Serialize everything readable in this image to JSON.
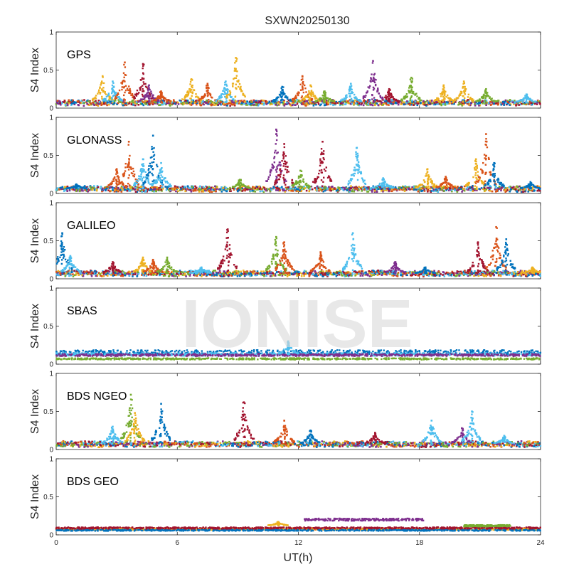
{
  "figure": {
    "title": "SXWN20250130",
    "watermark": "IONISE",
    "xlabel": "UT(h)",
    "ylabel": "S4 Index"
  },
  "colors": [
    "#0072BD",
    "#D95319",
    "#EDB120",
    "#7E2F8E",
    "#77AC30",
    "#4DBEEE",
    "#A2142F"
  ],
  "chart_data": [
    {
      "type": "scatter",
      "system": "GPS",
      "xlim": [
        0,
        24
      ],
      "ylim": [
        0,
        1
      ],
      "xticks": [
        0,
        6,
        12,
        18,
        24
      ],
      "yticks": [
        0,
        0.5,
        1
      ],
      "baseline": 0.07,
      "spikes": [
        {
          "x": 2.3,
          "peak": 0.42,
          "color": 2
        },
        {
          "x": 2.8,
          "peak": 0.35,
          "color": 5
        },
        {
          "x": 3.4,
          "peak": 0.6,
          "color": 1
        },
        {
          "x": 4.3,
          "peak": 0.58,
          "color": 6
        },
        {
          "x": 4.6,
          "peak": 0.3,
          "color": 3
        },
        {
          "x": 5.2,
          "peak": 0.22,
          "color": 1
        },
        {
          "x": 6.7,
          "peak": 0.38,
          "color": 2
        },
        {
          "x": 7.5,
          "peak": 0.32,
          "color": 1
        },
        {
          "x": 8.4,
          "peak": 0.35,
          "color": 5
        },
        {
          "x": 8.9,
          "peak": 0.66,
          "color": 2
        },
        {
          "x": 11.2,
          "peak": 0.28,
          "color": 0
        },
        {
          "x": 12.2,
          "peak": 0.42,
          "color": 1
        },
        {
          "x": 12.6,
          "peak": 0.3,
          "color": 2
        },
        {
          "x": 13.3,
          "peak": 0.22,
          "color": 4
        },
        {
          "x": 14.6,
          "peak": 0.32,
          "color": 5
        },
        {
          "x": 15.7,
          "peak": 0.62,
          "color": 3
        },
        {
          "x": 16.5,
          "peak": 0.25,
          "color": 6
        },
        {
          "x": 17.6,
          "peak": 0.4,
          "color": 4
        },
        {
          "x": 19.2,
          "peak": 0.3,
          "color": 2
        },
        {
          "x": 20.2,
          "peak": 0.35,
          "color": 2
        },
        {
          "x": 21.3,
          "peak": 0.25,
          "color": 4
        },
        {
          "x": 23.3,
          "peak": 0.18,
          "color": 5
        }
      ]
    },
    {
      "type": "scatter",
      "system": "GLONASS",
      "xlim": [
        0,
        24
      ],
      "ylim": [
        0,
        1
      ],
      "xticks": [
        0,
        6,
        12,
        18,
        24
      ],
      "yticks": [
        0,
        0.5,
        1
      ],
      "baseline": 0.06,
      "spikes": [
        {
          "x": 1.0,
          "peak": 0.12,
          "color": 0
        },
        {
          "x": 3.0,
          "peak": 0.32,
          "color": 1
        },
        {
          "x": 3.6,
          "peak": 0.68,
          "color": 1
        },
        {
          "x": 4.3,
          "peak": 0.45,
          "color": 5
        },
        {
          "x": 4.8,
          "peak": 0.76,
          "color": 0
        },
        {
          "x": 5.2,
          "peak": 0.4,
          "color": 5
        },
        {
          "x": 9.1,
          "peak": 0.18,
          "color": 4
        },
        {
          "x": 10.9,
          "peak": 0.84,
          "color": 3
        },
        {
          "x": 11.3,
          "peak": 0.65,
          "color": 6
        },
        {
          "x": 12.1,
          "peak": 0.3,
          "color": 4
        },
        {
          "x": 13.2,
          "peak": 0.68,
          "color": 6
        },
        {
          "x": 14.9,
          "peak": 0.6,
          "color": 5
        },
        {
          "x": 16.2,
          "peak": 0.2,
          "color": 5
        },
        {
          "x": 18.4,
          "peak": 0.32,
          "color": 2
        },
        {
          "x": 19.3,
          "peak": 0.22,
          "color": 1
        },
        {
          "x": 20.8,
          "peak": 0.45,
          "color": 2
        },
        {
          "x": 21.3,
          "peak": 0.78,
          "color": 1
        },
        {
          "x": 21.7,
          "peak": 0.4,
          "color": 0
        },
        {
          "x": 23.5,
          "peak": 0.15,
          "color": 0
        }
      ]
    },
    {
      "type": "scatter",
      "system": "GALILEO",
      "xlim": [
        0,
        24
      ],
      "ylim": [
        0,
        1
      ],
      "xticks": [
        0,
        6,
        12,
        18,
        24
      ],
      "yticks": [
        0,
        0.5,
        1
      ],
      "baseline": 0.07,
      "spikes": [
        {
          "x": 0.3,
          "peak": 0.6,
          "color": 0
        },
        {
          "x": 0.7,
          "peak": 0.3,
          "color": 5
        },
        {
          "x": 2.8,
          "peak": 0.22,
          "color": 6
        },
        {
          "x": 4.3,
          "peak": 0.28,
          "color": 2
        },
        {
          "x": 4.8,
          "peak": 0.25,
          "color": 1
        },
        {
          "x": 5.5,
          "peak": 0.28,
          "color": 4
        },
        {
          "x": 7.2,
          "peak": 0.15,
          "color": 5
        },
        {
          "x": 8.5,
          "peak": 0.65,
          "color": 6
        },
        {
          "x": 10.9,
          "peak": 0.55,
          "color": 4
        },
        {
          "x": 11.3,
          "peak": 0.48,
          "color": 1
        },
        {
          "x": 13.1,
          "peak": 0.35,
          "color": 1
        },
        {
          "x": 14.7,
          "peak": 0.6,
          "color": 5
        },
        {
          "x": 16.8,
          "peak": 0.22,
          "color": 3
        },
        {
          "x": 18.3,
          "peak": 0.15,
          "color": 0
        },
        {
          "x": 20.9,
          "peak": 0.48,
          "color": 6
        },
        {
          "x": 21.8,
          "peak": 0.68,
          "color": 1
        },
        {
          "x": 22.3,
          "peak": 0.52,
          "color": 0
        },
        {
          "x": 23.6,
          "peak": 0.15,
          "color": 2
        }
      ]
    },
    {
      "type": "scatter",
      "system": "SBAS",
      "xlim": [
        0,
        24
      ],
      "ylim": [
        0,
        1
      ],
      "xticks": [
        0,
        6,
        12,
        18,
        24
      ],
      "yticks": [
        0,
        0.5,
        1
      ],
      "bands": [
        {
          "y": 0.15,
          "spread": 0.035,
          "color": 0
        },
        {
          "y": 0.13,
          "spread": 0.02,
          "color": 5
        },
        {
          "y": 0.12,
          "spread": 0.015,
          "color": 3
        },
        {
          "y": 0.07,
          "spread": 0.01,
          "color": 4
        }
      ],
      "spikes": [
        {
          "x": 11.5,
          "peak": 0.3,
          "color": 5
        }
      ]
    },
    {
      "type": "scatter",
      "system": "BDS NGEO",
      "xlim": [
        0,
        24
      ],
      "ylim": [
        0,
        1
      ],
      "xticks": [
        0,
        6,
        12,
        18,
        24
      ],
      "yticks": [
        0,
        0.5,
        1
      ],
      "baseline": 0.07,
      "spikes": [
        {
          "x": 2.8,
          "peak": 0.3,
          "color": 5
        },
        {
          "x": 3.7,
          "peak": 0.72,
          "color": 4
        },
        {
          "x": 3.9,
          "peak": 0.48,
          "color": 2
        },
        {
          "x": 5.2,
          "peak": 0.6,
          "color": 0
        },
        {
          "x": 9.3,
          "peak": 0.62,
          "color": 6
        },
        {
          "x": 11.3,
          "peak": 0.38,
          "color": 1
        },
        {
          "x": 12.6,
          "peak": 0.25,
          "color": 0
        },
        {
          "x": 15.8,
          "peak": 0.22,
          "color": 6
        },
        {
          "x": 18.6,
          "peak": 0.38,
          "color": 5
        },
        {
          "x": 20.1,
          "peak": 0.28,
          "color": 3
        },
        {
          "x": 20.6,
          "peak": 0.5,
          "color": 5
        },
        {
          "x": 22.2,
          "peak": 0.18,
          "color": 5
        }
      ]
    },
    {
      "type": "scatter",
      "system": "BDS GEO",
      "xlim": [
        0,
        24
      ],
      "ylim": [
        0,
        1
      ],
      "xticks": [
        0,
        6,
        12,
        18,
        24
      ],
      "yticks": [
        0,
        0.5,
        1
      ],
      "bands": [
        {
          "y": 0.08,
          "spread": 0.012,
          "color": 1
        },
        {
          "y": 0.07,
          "spread": 0.01,
          "color": 2
        },
        {
          "y": 0.06,
          "spread": 0.008,
          "color": 0
        },
        {
          "y": 0.09,
          "spread": 0.01,
          "color": 6
        }
      ],
      "segments": [
        {
          "x0": 12.3,
          "x1": 18.2,
          "y": 0.2,
          "spread": 0.015,
          "color": 3
        },
        {
          "x0": 20.2,
          "x1": 22.5,
          "y": 0.12,
          "spread": 0.01,
          "color": 4
        }
      ],
      "spikes": [
        {
          "x": 11.0,
          "peak": 0.17,
          "color": 2
        }
      ]
    }
  ]
}
